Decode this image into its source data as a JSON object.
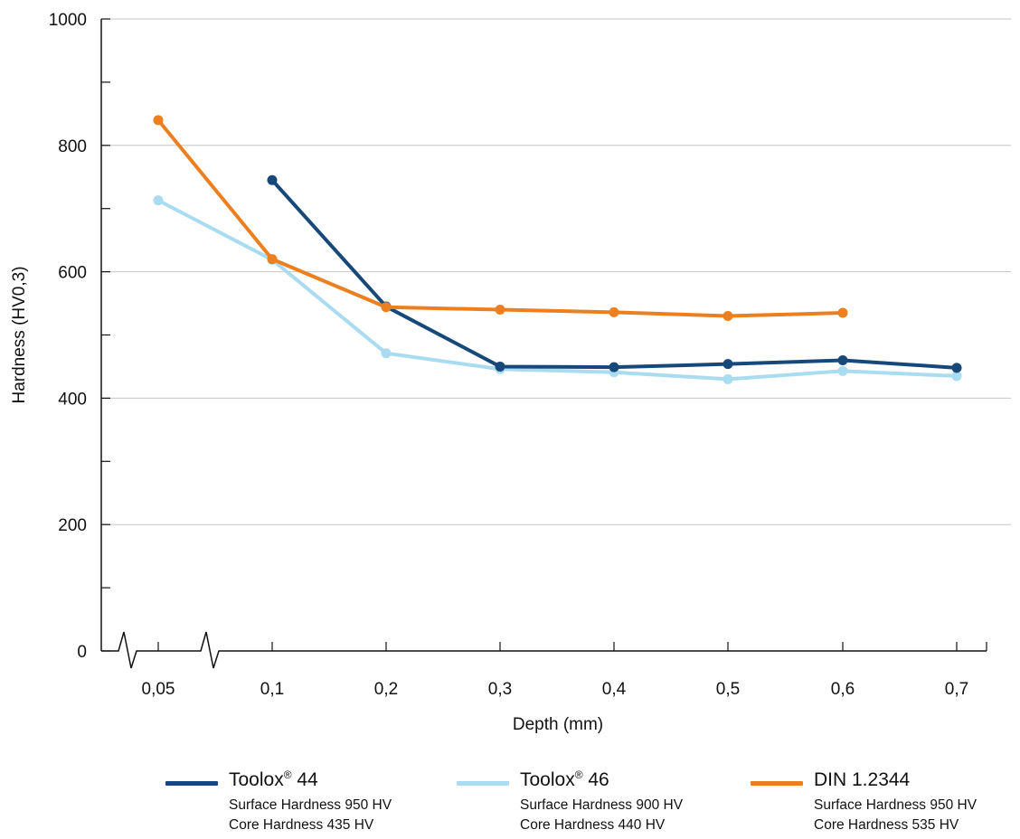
{
  "chart_data": {
    "type": "line",
    "xlabel": "Depth (mm)",
    "ylabel": "Hardness (HV0,3)",
    "categories": [
      "0,05",
      "0,1",
      "0,2",
      "0,3",
      "0,4",
      "0,5",
      "0,6",
      "0,7"
    ],
    "x_axis_break": true,
    "ylim": [
      0,
      1000
    ],
    "yticks": [
      "0",
      "200",
      "400",
      "600",
      "800",
      "1000"
    ],
    "grid": "horizontal",
    "legend_position": "bottom",
    "series": [
      {
        "name": "Toolox® 44",
        "label_main": "Toolox",
        "label_sup": "®",
        "label_tail": " 44",
        "color": "#16497a",
        "values": [
          null,
          745,
          545,
          450,
          449,
          454,
          460,
          448
        ],
        "notes": [
          "Surface Hardness 950 HV",
          "Core Hardness 435 HV"
        ]
      },
      {
        "name": "Toolox® 46",
        "label_main": "Toolox",
        "label_sup": "®",
        "label_tail": " 46",
        "color": "#a9dbf1",
        "values": [
          713,
          619,
          471,
          446,
          441,
          430,
          443,
          435
        ],
        "notes": [
          "Surface Hardness 900 HV",
          "Core Hardness 440 HV"
        ]
      },
      {
        "name": "DIN 1.2344",
        "label_main": "DIN 1.2344",
        "label_sup": "",
        "label_tail": "",
        "color": "#ec7f1f",
        "values": [
          840,
          620,
          544,
          540,
          536,
          530,
          535,
          null
        ],
        "notes": [
          "Surface Hardness 950 HV",
          "Core Hardness 535 HV"
        ]
      }
    ]
  }
}
